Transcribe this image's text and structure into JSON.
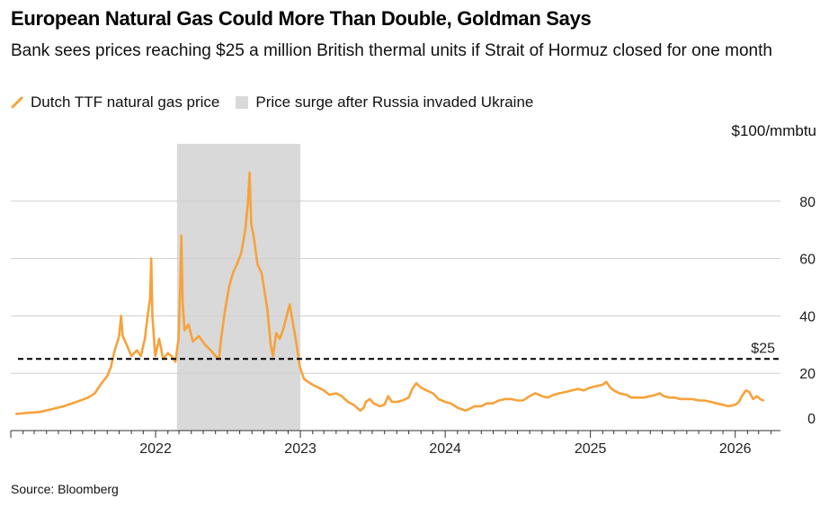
{
  "header": {
    "title": "European Natural Gas Could More Than Double, Goldman Says",
    "subtitle": "Bank sees prices reaching $25 a million British thermal units if Strait of Hormuz closed for one month"
  },
  "legend": {
    "series_label": "Dutch TTF natural gas price",
    "shade_label": "Price surge after Russia invaded Ukraine"
  },
  "footer": {
    "source": "Source: Bloomberg"
  },
  "colors": {
    "series": "#f7a23a",
    "shade": "#d9d9d9",
    "grid": "#cfcfcf",
    "reference": "#000000"
  },
  "chart_data": {
    "type": "line",
    "title": "European Natural Gas Could More Than Double, Goldman Says",
    "subtitle": "Bank sees prices reaching $25 a million British thermal units if Strait of Hormuz closed for one month",
    "ylabel": "$100/mmbtu",
    "y_unit_label": "$100/mmbtu",
    "ylim": [
      0,
      100
    ],
    "yticks": [
      0,
      20,
      40,
      60,
      80
    ],
    "xlim": [
      "2021-01-01",
      "2026-04-25"
    ],
    "xticks": [
      "2022",
      "2023",
      "2024",
      "2025",
      "2026"
    ],
    "grid": "horizontal",
    "legend_position": "top-left",
    "shaded_region": {
      "label": "Price surge after Russia invaded Ukraine",
      "start": "2022-02-24",
      "end": "2023-01-01"
    },
    "reference_line": {
      "label": "$25",
      "value": 25,
      "style": "dashed"
    },
    "series": [
      {
        "name": "Dutch TTF natural gas price",
        "points": [
          [
            "2021-01-15",
            5.8
          ],
          [
            "2021-02-15",
            6.2
          ],
          [
            "2021-03-15",
            6.5
          ],
          [
            "2021-04-15",
            7.5
          ],
          [
            "2021-05-15",
            8.5
          ],
          [
            "2021-06-15",
            10
          ],
          [
            "2021-07-15",
            11.5
          ],
          [
            "2021-08-01",
            13
          ],
          [
            "2021-08-15",
            16
          ],
          [
            "2021-09-01",
            19
          ],
          [
            "2021-09-10",
            22
          ],
          [
            "2021-09-20",
            28
          ],
          [
            "2021-10-01",
            33
          ],
          [
            "2021-10-06",
            40
          ],
          [
            "2021-10-10",
            33
          ],
          [
            "2021-10-20",
            30
          ],
          [
            "2021-11-01",
            26
          ],
          [
            "2021-11-15",
            28
          ],
          [
            "2021-11-25",
            26
          ],
          [
            "2021-12-05",
            32
          ],
          [
            "2021-12-12",
            40
          ],
          [
            "2021-12-18",
            46
          ],
          [
            "2021-12-21",
            60
          ],
          [
            "2021-12-24",
            40
          ],
          [
            "2021-12-31",
            26
          ],
          [
            "2022-01-10",
            32
          ],
          [
            "2022-01-20",
            25
          ],
          [
            "2022-02-01",
            27
          ],
          [
            "2022-02-10",
            26
          ],
          [
            "2022-02-20",
            24
          ],
          [
            "2022-02-28",
            32
          ],
          [
            "2022-03-04",
            50
          ],
          [
            "2022-03-07",
            68
          ],
          [
            "2022-03-10",
            45
          ],
          [
            "2022-03-15",
            35
          ],
          [
            "2022-03-25",
            37
          ],
          [
            "2022-04-05",
            31
          ],
          [
            "2022-04-20",
            33
          ],
          [
            "2022-05-05",
            30
          ],
          [
            "2022-05-20",
            28
          ],
          [
            "2022-06-01",
            26
          ],
          [
            "2022-06-10",
            25
          ],
          [
            "2022-06-15",
            32
          ],
          [
            "2022-06-25",
            42
          ],
          [
            "2022-07-05",
            50
          ],
          [
            "2022-07-15",
            55
          ],
          [
            "2022-07-25",
            58
          ],
          [
            "2022-08-05",
            62
          ],
          [
            "2022-08-15",
            70
          ],
          [
            "2022-08-22",
            80
          ],
          [
            "2022-08-26",
            90
          ],
          [
            "2022-08-30",
            72
          ],
          [
            "2022-09-05",
            68
          ],
          [
            "2022-09-15",
            58
          ],
          [
            "2022-09-25",
            55
          ],
          [
            "2022-10-01",
            50
          ],
          [
            "2022-10-10",
            42
          ],
          [
            "2022-10-18",
            30
          ],
          [
            "2022-10-24",
            26
          ],
          [
            "2022-11-01",
            34
          ],
          [
            "2022-11-10",
            32
          ],
          [
            "2022-11-20",
            36
          ],
          [
            "2022-12-05",
            44
          ],
          [
            "2022-12-10",
            40
          ],
          [
            "2022-12-20",
            32
          ],
          [
            "2022-12-31",
            22
          ],
          [
            "2023-01-10",
            18
          ],
          [
            "2023-01-20",
            17
          ],
          [
            "2023-02-01",
            16
          ],
          [
            "2023-02-15",
            15
          ],
          [
            "2023-03-01",
            14
          ],
          [
            "2023-03-15",
            12.5
          ],
          [
            "2023-04-01",
            13
          ],
          [
            "2023-04-15",
            12
          ],
          [
            "2023-05-01",
            10
          ],
          [
            "2023-05-15",
            9
          ],
          [
            "2023-06-01",
            7
          ],
          [
            "2023-06-10",
            8
          ],
          [
            "2023-06-15",
            10
          ],
          [
            "2023-06-25",
            11
          ],
          [
            "2023-07-05",
            9.5
          ],
          [
            "2023-07-20",
            8.5
          ],
          [
            "2023-08-01",
            9
          ],
          [
            "2023-08-10",
            12
          ],
          [
            "2023-08-20",
            10
          ],
          [
            "2023-09-01",
            10
          ],
          [
            "2023-09-15",
            10.5
          ],
          [
            "2023-10-01",
            11.5
          ],
          [
            "2023-10-10",
            14.5
          ],
          [
            "2023-10-20",
            16.5
          ],
          [
            "2023-11-01",
            15
          ],
          [
            "2023-11-15",
            14
          ],
          [
            "2023-12-01",
            13
          ],
          [
            "2023-12-15",
            11
          ],
          [
            "2024-01-01",
            10
          ],
          [
            "2024-01-15",
            9.5
          ],
          [
            "2024-02-01",
            8
          ],
          [
            "2024-02-20",
            7
          ],
          [
            "2024-03-01",
            7.5
          ],
          [
            "2024-03-15",
            8.5
          ],
          [
            "2024-04-01",
            8.5
          ],
          [
            "2024-04-15",
            9.5
          ],
          [
            "2024-05-01",
            9.5
          ],
          [
            "2024-05-15",
            10.5
          ],
          [
            "2024-06-01",
            11
          ],
          [
            "2024-06-15",
            11
          ],
          [
            "2024-07-01",
            10.5
          ],
          [
            "2024-07-15",
            10.5
          ],
          [
            "2024-08-01",
            12
          ],
          [
            "2024-08-15",
            13
          ],
          [
            "2024-09-01",
            12
          ],
          [
            "2024-09-15",
            11.5
          ],
          [
            "2024-10-01",
            12.5
          ],
          [
            "2024-10-15",
            13
          ],
          [
            "2024-11-01",
            13.5
          ],
          [
            "2024-11-15",
            14
          ],
          [
            "2024-12-01",
            14.5
          ],
          [
            "2024-12-15",
            14
          ],
          [
            "2025-01-01",
            15
          ],
          [
            "2025-01-15",
            15.5
          ],
          [
            "2025-02-01",
            16
          ],
          [
            "2025-02-10",
            17
          ],
          [
            "2025-02-20",
            15
          ],
          [
            "2025-03-01",
            14
          ],
          [
            "2025-03-15",
            13
          ],
          [
            "2025-04-01",
            12.5
          ],
          [
            "2025-04-15",
            11.5
          ],
          [
            "2025-05-01",
            11.5
          ],
          [
            "2025-05-15",
            11.5
          ],
          [
            "2025-06-01",
            12
          ],
          [
            "2025-06-15",
            12.5
          ],
          [
            "2025-06-25",
            13
          ],
          [
            "2025-07-05",
            12
          ],
          [
            "2025-07-20",
            11.5
          ],
          [
            "2025-08-01",
            11.5
          ],
          [
            "2025-08-15",
            11
          ],
          [
            "2025-09-01",
            11
          ],
          [
            "2025-09-15",
            11
          ],
          [
            "2025-10-01",
            10.5
          ],
          [
            "2025-10-15",
            10.5
          ],
          [
            "2025-11-01",
            10
          ],
          [
            "2025-11-15",
            9.5
          ],
          [
            "2025-12-01",
            9
          ],
          [
            "2025-12-15",
            8.5
          ],
          [
            "2026-01-01",
            9
          ],
          [
            "2026-01-10",
            10
          ],
          [
            "2026-01-20",
            12.5
          ],
          [
            "2026-01-28",
            14
          ],
          [
            "2026-02-05",
            13.5
          ],
          [
            "2026-02-15",
            11
          ],
          [
            "2026-02-25",
            12
          ],
          [
            "2026-03-05",
            11
          ],
          [
            "2026-03-12",
            10.5
          ]
        ]
      }
    ]
  }
}
